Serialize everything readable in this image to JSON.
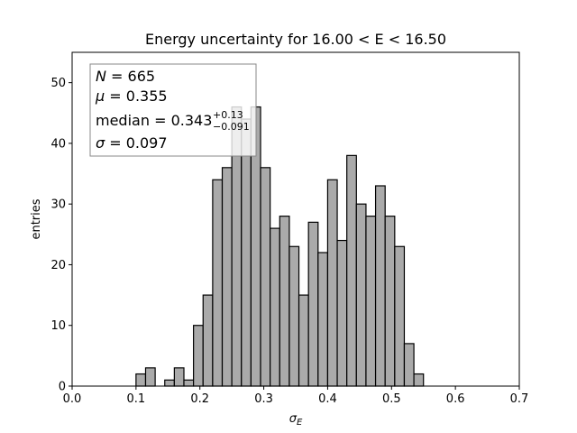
{
  "chart_data": {
    "type": "bar",
    "title": "Energy uncertainty for 16.00 < E < 16.50",
    "xlabel": "σ_E",
    "ylabel": "entries",
    "xlim": [
      0.0,
      0.7
    ],
    "ylim": [
      0,
      55
    ],
    "x_ticks": [
      "0.0",
      "0.1",
      "0.2",
      "0.3",
      "0.4",
      "0.5",
      "0.6",
      "0.7"
    ],
    "y_ticks": [
      "0",
      "10",
      "20",
      "30",
      "40",
      "50"
    ],
    "bin_width": 0.015,
    "bin_starts": [
      0.1,
      0.115,
      0.13,
      0.145,
      0.16,
      0.175,
      0.19,
      0.205,
      0.22,
      0.235,
      0.25,
      0.265,
      0.28,
      0.295,
      0.31,
      0.325,
      0.34,
      0.355,
      0.37,
      0.385,
      0.4,
      0.415,
      0.43,
      0.445,
      0.46,
      0.475,
      0.49,
      0.505,
      0.52,
      0.535
    ],
    "values": [
      2,
      3,
      0,
      1,
      3,
      1,
      10,
      15,
      34,
      36,
      46,
      44,
      46,
      36,
      26,
      28,
      23,
      15,
      27,
      22,
      34,
      24,
      38,
      30,
      28,
      33,
      28,
      23,
      7,
      2
    ],
    "bar_color": "#aaaaaa",
    "grid": false,
    "legend": "none",
    "stats_box": {
      "placement": "top-left",
      "n_line": {
        "var": "N",
        "eq": " = ",
        "val": "665"
      },
      "mu_line": {
        "var": "μ",
        "eq": " = ",
        "val": "0.355"
      },
      "median_line": {
        "label": "median",
        "eq": " = ",
        "val": "0.343",
        "sup": "+0.13",
        "sub": "−0.091"
      },
      "sigma_line": {
        "var": "σ",
        "eq": " = ",
        "val": "0.097"
      }
    }
  }
}
